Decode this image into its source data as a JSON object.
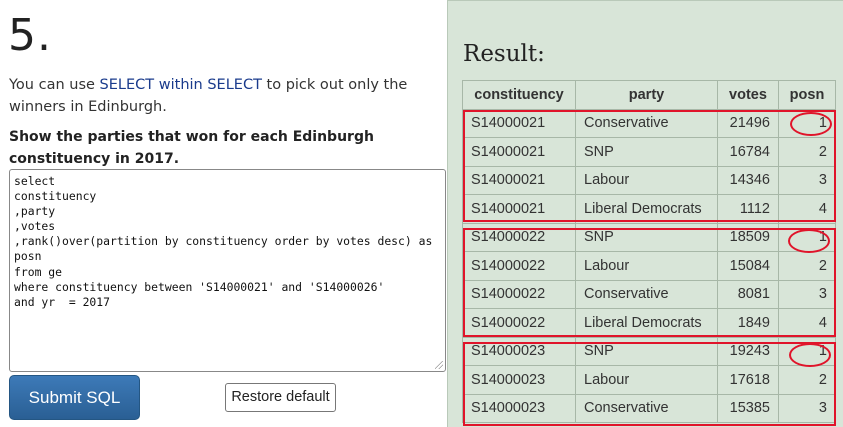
{
  "question": {
    "number": "5.",
    "intro_before": "You can use ",
    "intro_kw": "SELECT within SELECT",
    "intro_after": " to pick out only the winners in Edinburgh.",
    "task": "Show the parties that won for each Edinburgh constituency in 2017."
  },
  "editor": {
    "sql": "select\nconstituency\n,party\n,votes\n,rank()over(partition by constituency order by votes desc) as\nposn\nfrom ge\nwhere constituency between 'S14000021' and 'S14000026'\nand yr  = 2017"
  },
  "buttons": {
    "submit": "Submit SQL",
    "restore": "Restore default"
  },
  "result": {
    "title": "Result:",
    "headers": [
      "constituency",
      "party",
      "votes",
      "posn"
    ],
    "rows": [
      [
        "S14000021",
        "Conservative",
        "21496",
        "1"
      ],
      [
        "S14000021",
        "SNP",
        "16784",
        "2"
      ],
      [
        "S14000021",
        "Labour",
        "14346",
        "3"
      ],
      [
        "S14000021",
        "Liberal Democrats",
        "1112",
        "4"
      ],
      [
        "S14000022",
        "SNP",
        "18509",
        "1"
      ],
      [
        "S14000022",
        "Labour",
        "15084",
        "2"
      ],
      [
        "S14000022",
        "Conservative",
        "8081",
        "3"
      ],
      [
        "S14000022",
        "Liberal Democrats",
        "1849",
        "4"
      ],
      [
        "S14000023",
        "SNP",
        "19243",
        "1"
      ],
      [
        "S14000023",
        "Labour",
        "17618",
        "2"
      ],
      [
        "S14000023",
        "Conservative",
        "15385",
        "3"
      ]
    ]
  },
  "annotations": {
    "highlight_color": "#e0142a"
  }
}
